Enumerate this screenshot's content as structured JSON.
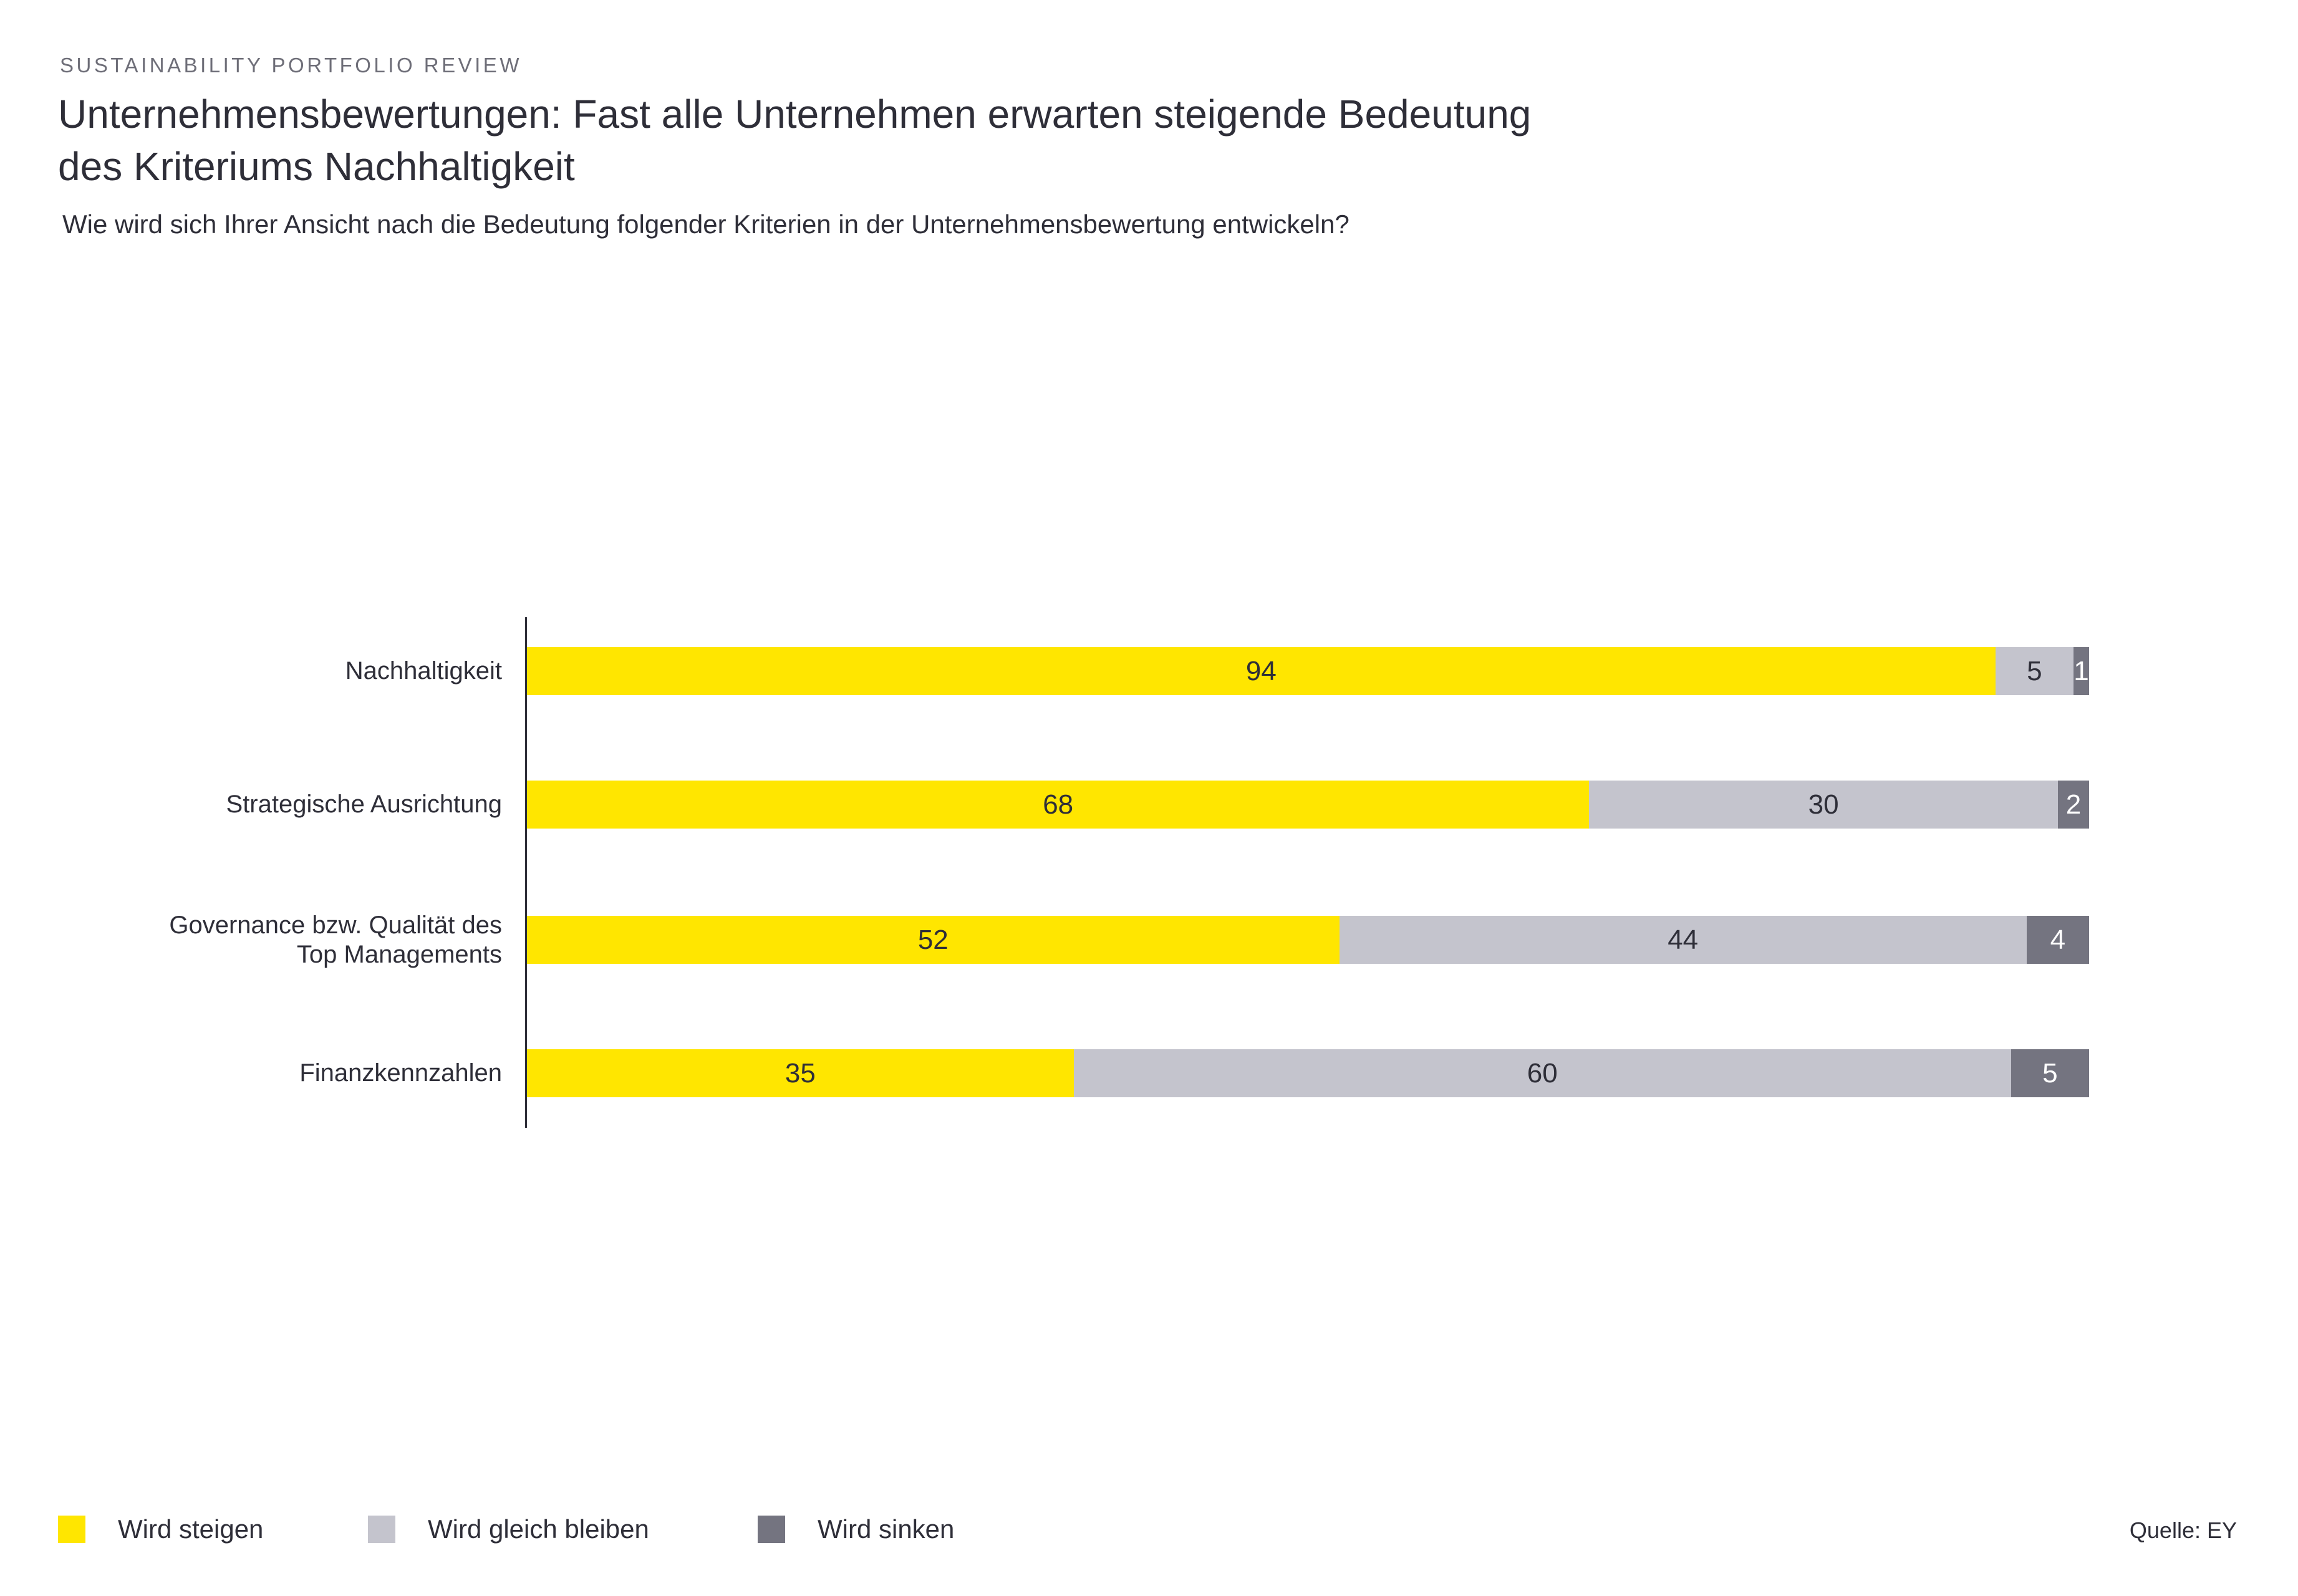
{
  "header": {
    "eyebrow": "SUSTAINABILITY PORTFOLIO REVIEW",
    "title_lines": [
      "Unternehmensbewertungen: Fast alle Unternehmen erwarten steigende Bedeutung",
      "des Kriteriums Nachhaltigkeit"
    ],
    "subtitle": "Wie wird sich Ihrer Ansicht nach die Bedeutung folgender Kriterien in der Unternehmensbewertung entwickeln?"
  },
  "colors": {
    "steigen": "#FFE600",
    "gleich_bleiben": "#C4C4CD",
    "sinken": "#747480",
    "text_dark": "#2E2E38",
    "text_on_dark": "#FFFFFF"
  },
  "chart_data": {
    "type": "bar",
    "orientation": "horizontal",
    "stacked": true,
    "xlim": [
      0,
      100
    ],
    "grid": false,
    "categories": [
      "Nachhaltigkeit",
      "Strategische Ausrichtung",
      "Governance bzw. Qualität des Top Managements",
      "Finanzkennzahlen"
    ],
    "categories_display_lines": [
      [
        "Nachhaltigkeit"
      ],
      [
        "Strategische Ausrichtung"
      ],
      [
        "Governance bzw. Qualität des",
        "Top Managements"
      ],
      [
        "Finanzkennzahlen"
      ]
    ],
    "series": [
      {
        "name": "Wird steigen",
        "color": "#FFE600",
        "label_color": "#2E2E38",
        "values": [
          94,
          68,
          52,
          35
        ]
      },
      {
        "name": "Wird gleich bleiben",
        "color": "#C4C4CD",
        "label_color": "#2E2E38",
        "values": [
          5,
          30,
          44,
          60
        ]
      },
      {
        "name": "Wird sinken",
        "color": "#747480",
        "label_color": "#FFFFFF",
        "values": [
          1,
          2,
          4,
          5
        ]
      }
    ],
    "legend_position": "bottom"
  },
  "legend": [
    {
      "label": "Wird steigen",
      "color": "#FFE600"
    },
    {
      "label": "Wird gleich bleiben",
      "color": "#C4C4CD"
    },
    {
      "label": "Wird sinken",
      "color": "#747480"
    }
  ],
  "source": "Quelle: EY"
}
